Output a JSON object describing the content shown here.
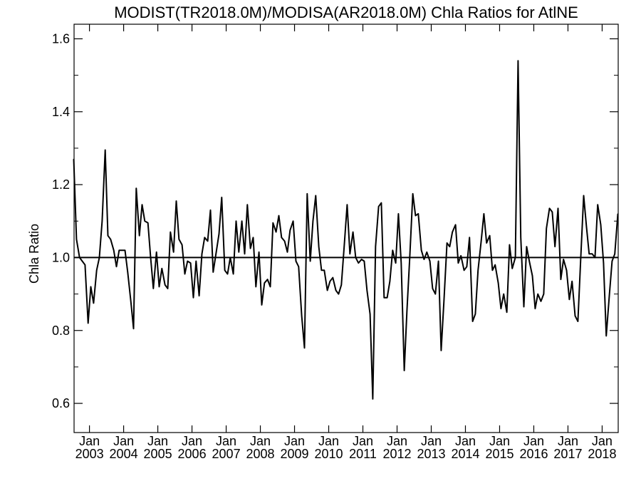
{
  "chart_data": {
    "type": "line",
    "title": "MODIST(TR2018.0M)/MODISA(AR2018.0M)  Chla Ratios for AtlNE",
    "xlabel": "",
    "ylabel": "Chla Ratio",
    "ylim": [
      0.52,
      1.64
    ],
    "xlim": [
      2002.55,
      2018.47
    ],
    "yticks": [
      0.6,
      0.8,
      1.0,
      1.2,
      1.4,
      1.6
    ],
    "ytick_labels": [
      "0.6",
      "0.8",
      "1.0",
      "1.2",
      "1.4",
      "1.6"
    ],
    "xticks": [
      2003,
      2004,
      2005,
      2006,
      2007,
      2008,
      2009,
      2010,
      2011,
      2012,
      2013,
      2014,
      2015,
      2016,
      2017,
      2018
    ],
    "xtick_month_label": "Jan",
    "xtick_year_labels": [
      "2003",
      "2004",
      "2005",
      "2006",
      "2007",
      "2008",
      "2009",
      "2010",
      "2011",
      "2012",
      "2013",
      "2014",
      "2015",
      "2016",
      "2017",
      "2018"
    ],
    "reference_line": 1.0,
    "grid": false,
    "series": [
      {
        "x": [
          2002.54,
          2002.62,
          2002.71,
          2002.79,
          2002.87,
          2002.96,
          2003.04,
          2003.12,
          2003.21,
          2003.29,
          2003.37,
          2003.46,
          2003.54,
          2003.62,
          2003.71,
          2003.79,
          2003.87,
          2003.96,
          2004.04,
          2004.12,
          2004.21,
          2004.29,
          2004.37,
          2004.46,
          2004.54,
          2004.62,
          2004.71,
          2004.79,
          2004.87,
          2004.96,
          2005.04,
          2005.12,
          2005.21,
          2005.29,
          2005.37,
          2005.46,
          2005.54,
          2005.62,
          2005.71,
          2005.79,
          2005.87,
          2005.96,
          2006.04,
          2006.12,
          2006.21,
          2006.29,
          2006.37,
          2006.46,
          2006.54,
          2006.62,
          2006.71,
          2006.79,
          2006.87,
          2006.96,
          2007.04,
          2007.12,
          2007.21,
          2007.29,
          2007.37,
          2007.46,
          2007.54,
          2007.62,
          2007.71,
          2007.79,
          2007.87,
          2007.96,
          2008.04,
          2008.12,
          2008.21,
          2008.29,
          2008.37,
          2008.46,
          2008.54,
          2008.62,
          2008.71,
          2008.79,
          2008.87,
          2008.96,
          2009.04,
          2009.12,
          2009.21,
          2009.29,
          2009.37,
          2009.46,
          2009.54,
          2009.62,
          2009.71,
          2009.79,
          2009.87,
          2009.96,
          2010.04,
          2010.12,
          2010.21,
          2010.29,
          2010.37,
          2010.46,
          2010.54,
          2010.62,
          2010.71,
          2010.79,
          2010.87,
          2010.96,
          2011.04,
          2011.12,
          2011.21,
          2011.29,
          2011.37,
          2011.46,
          2011.54,
          2011.62,
          2011.71,
          2011.79,
          2011.87,
          2011.96,
          2012.04,
          2012.12,
          2012.21,
          2012.29,
          2012.37,
          2012.46,
          2012.54,
          2012.62,
          2012.71,
          2012.79,
          2012.87,
          2012.96,
          2013.04,
          2013.12,
          2013.21,
          2013.29,
          2013.37,
          2013.46,
          2013.54,
          2013.62,
          2013.71,
          2013.79,
          2013.87,
          2013.96,
          2014.04,
          2014.12,
          2014.21,
          2014.29,
          2014.37,
          2014.46,
          2014.54,
          2014.62,
          2014.71,
          2014.79,
          2014.87,
          2014.96,
          2015.04,
          2015.12,
          2015.21,
          2015.29,
          2015.37,
          2015.46,
          2015.54,
          2015.62,
          2015.71,
          2015.79,
          2015.87,
          2015.96,
          2016.04,
          2016.12,
          2016.21,
          2016.29,
          2016.37,
          2016.46,
          2016.54,
          2016.62,
          2016.71,
          2016.79,
          2016.87,
          2016.96,
          2017.04,
          2017.12,
          2017.21,
          2017.29,
          2017.37,
          2017.46,
          2017.54,
          2017.62,
          2017.71,
          2017.79,
          2017.87,
          2017.96,
          2018.04,
          2018.12,
          2018.21,
          2018.29,
          2018.37,
          2018.46
        ],
        "values": [
          1.27,
          1.05,
          1.0,
          0.99,
          0.98,
          0.82,
          0.92,
          0.875,
          0.965,
          1.0,
          1.1,
          1.295,
          1.06,
          1.05,
          1.02,
          0.975,
          1.02,
          1.02,
          1.02,
          0.96,
          0.88,
          0.805,
          1.19,
          1.06,
          1.145,
          1.1,
          1.095,
          1.0,
          0.915,
          1.015,
          0.92,
          0.97,
          0.925,
          0.915,
          1.07,
          1.015,
          1.155,
          1.05,
          1.035,
          0.955,
          0.99,
          0.985,
          0.89,
          0.99,
          0.895,
          1.01,
          1.055,
          1.045,
          1.13,
          0.96,
          1.015,
          1.065,
          1.165,
          0.965,
          0.955,
          1.0,
          0.955,
          1.1,
          1.015,
          1.1,
          1.01,
          1.145,
          1.025,
          1.055,
          0.92,
          1.015,
          0.87,
          0.93,
          0.94,
          0.92,
          1.095,
          1.07,
          1.115,
          1.055,
          1.045,
          1.015,
          1.075,
          1.1,
          0.99,
          0.975,
          0.84,
          0.752,
          1.175,
          0.99,
          1.1,
          1.17,
          1.03,
          0.965,
          0.965,
          0.91,
          0.935,
          0.945,
          0.91,
          0.9,
          0.925,
          1.04,
          1.145,
          1.01,
          1.07,
          1.0,
          0.985,
          0.995,
          0.99,
          0.91,
          0.845,
          0.612,
          1.03,
          1.14,
          1.15,
          0.89,
          0.89,
          0.935,
          1.02,
          0.985,
          1.12,
          0.985,
          0.69,
          0.855,
          1.0,
          1.175,
          1.115,
          1.12,
          1.02,
          0.995,
          1.015,
          0.99,
          0.915,
          0.9,
          0.99,
          0.745,
          0.88,
          1.04,
          1.03,
          1.07,
          1.09,
          0.985,
          1.005,
          0.965,
          0.975,
          1.055,
          0.825,
          0.845,
          0.965,
          1.045,
          1.12,
          1.04,
          1.06,
          0.965,
          0.98,
          0.93,
          0.86,
          0.9,
          0.85,
          1.035,
          0.97,
          1.0,
          1.54,
          1.055,
          0.865,
          1.03,
          0.99,
          0.95,
          0.86,
          0.9,
          0.88,
          0.9,
          1.08,
          1.135,
          1.125,
          1.03,
          1.135,
          0.94,
          0.995,
          0.965,
          0.885,
          0.935,
          0.84,
          0.825,
          0.99,
          1.17,
          1.085,
          1.01,
          1.01,
          1.0,
          1.145,
          1.09,
          0.985,
          0.785,
          0.895,
          0.99,
          1.01,
          1.12
        ]
      }
    ]
  }
}
